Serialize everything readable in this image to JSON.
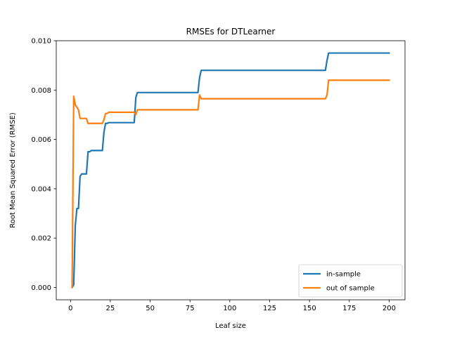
{
  "chart_data": {
    "type": "line",
    "title": "RMSEs for DTLearner",
    "xlabel": "Leaf size",
    "ylabel": "Root Mean Squared Error (RMSE)",
    "xlim": [
      -8.95,
      209.95
    ],
    "ylim": [
      -0.0005,
      0.01
    ],
    "xticks": [
      0,
      25,
      50,
      75,
      100,
      125,
      150,
      175,
      200
    ],
    "xtick_labels": [
      "0",
      "25",
      "50",
      "75",
      "100",
      "125",
      "150",
      "175",
      "200"
    ],
    "yticks": [
      0.0,
      0.002,
      0.004,
      0.006,
      0.008,
      0.01
    ],
    "ytick_labels": [
      "0.000",
      "0.002",
      "0.004",
      "0.006",
      "0.008",
      "0.010"
    ],
    "grid": false,
    "legend_position": "lower-right",
    "series": [
      {
        "name": "in-sample",
        "color": "#1f77b4",
        "x": [
          1,
          2,
          3,
          4,
          5,
          6,
          7,
          8,
          9,
          10,
          11,
          12,
          13,
          20,
          21,
          22,
          23,
          24,
          25,
          40,
          41,
          42,
          43,
          80,
          81,
          82,
          160,
          161,
          162,
          200
        ],
        "y": [
          0.0,
          0.0001,
          0.0025,
          0.0032,
          0.0032,
          0.0045,
          0.0046,
          0.0046,
          0.0046,
          0.0046,
          0.0055,
          0.0055,
          0.00555,
          0.00555,
          0.0063,
          0.00665,
          0.00665,
          0.00668,
          0.00668,
          0.00668,
          0.0077,
          0.0079,
          0.0079,
          0.0079,
          0.0085,
          0.0088,
          0.0088,
          0.0092,
          0.0095,
          0.0095
        ]
      },
      {
        "name": "out of sample",
        "color": "#ff7f0e",
        "x": [
          1,
          2,
          3,
          4,
          5,
          6,
          7,
          8,
          9,
          10,
          11,
          12,
          13,
          20,
          21,
          22,
          23,
          24,
          25,
          40,
          41,
          42,
          43,
          80,
          81,
          82,
          160,
          161,
          162,
          200
        ],
        "y": [
          0.0,
          0.00775,
          0.0074,
          0.0073,
          0.0072,
          0.00685,
          0.00685,
          0.00685,
          0.00685,
          0.00685,
          0.00665,
          0.00665,
          0.00665,
          0.00665,
          0.0068,
          0.00705,
          0.00705,
          0.0071,
          0.0071,
          0.0071,
          0.007,
          0.0072,
          0.0072,
          0.0072,
          0.0078,
          0.00765,
          0.00765,
          0.0078,
          0.0084,
          0.0084
        ]
      }
    ]
  }
}
